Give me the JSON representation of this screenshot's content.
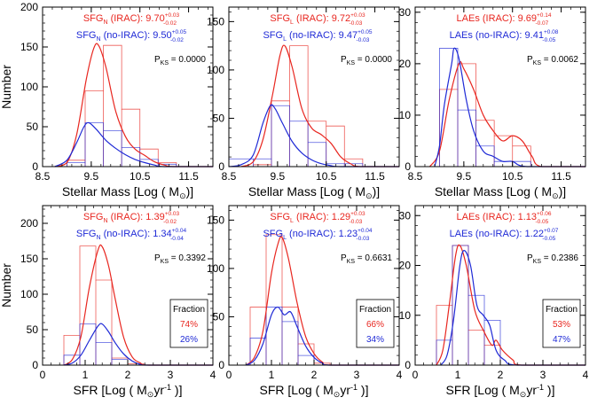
{
  "colors": {
    "irac": "#e8261f",
    "noirac": "#1f2ad6",
    "axis": "#000000"
  },
  "labels": {
    "y_number": "Number",
    "x_mass": "Stellar Mass [Log ( M",
    "x_mass_tail": ")]",
    "x_sfr": "SFR [Log ( M",
    "x_sfr_mid": "yr",
    "x_sfr_exp": "-1",
    "x_sfr_tail": " )]",
    "sun": "⊙",
    "fraction_title": "Fraction"
  },
  "chart_data": [
    {
      "type": "histogram+kde",
      "name": "SFG_N stellar mass",
      "xlim": [
        8.5,
        12.0
      ],
      "ylim": [
        0,
        200
      ],
      "xticks": [
        8.5,
        9.5,
        10.5,
        11.5
      ],
      "yticks": [
        0,
        50,
        100,
        150,
        200
      ],
      "legend": {
        "irac": {
          "name": "SFG",
          "sub": "N",
          "label": " (IRAC): 9.70",
          "sup": "+0.03",
          "sub2": "-0.02"
        },
        "noirac": {
          "name": "SFG",
          "sub": "N",
          "label": " (no-IRAC): 9.50",
          "sup": "+0.05",
          "sub2": "-0.02"
        }
      },
      "pks_label": "P",
      "pks_sub": "KS",
      "pks_value": " = 0.0000",
      "hist": {
        "edges": [
          9.0,
          9.375,
          9.75,
          10.125,
          10.5,
          10.875,
          11.25
        ],
        "irac": [
          8,
          95,
          152,
          72,
          22,
          5
        ],
        "noirac": [
          5,
          55,
          45,
          24,
          9,
          3
        ]
      },
      "kde": {
        "irac": [
          [
            8.75,
            0
          ],
          [
            9.0,
            5
          ],
          [
            9.2,
            40
          ],
          [
            9.4,
            110
          ],
          [
            9.55,
            148
          ],
          [
            9.65,
            152
          ],
          [
            9.8,
            125
          ],
          [
            10.0,
            70
          ],
          [
            10.2,
            38
          ],
          [
            10.4,
            22
          ],
          [
            10.6,
            14
          ],
          [
            10.8,
            6
          ],
          [
            11.0,
            2
          ],
          [
            11.2,
            0
          ],
          [
            12.0,
            0
          ]
        ],
        "noirac": [
          [
            8.75,
            0
          ],
          [
            9.0,
            8
          ],
          [
            9.2,
            30
          ],
          [
            9.35,
            50
          ],
          [
            9.45,
            55
          ],
          [
            9.6,
            47
          ],
          [
            9.8,
            33
          ],
          [
            10.0,
            23
          ],
          [
            10.2,
            15
          ],
          [
            10.4,
            9
          ],
          [
            10.6,
            5
          ],
          [
            10.8,
            2
          ],
          [
            11.0,
            0
          ],
          [
            12.0,
            0
          ]
        ]
      }
    },
    {
      "type": "histogram+kde",
      "name": "SFG_L stellar mass",
      "xlim": [
        8.5,
        12.0
      ],
      "ylim": [
        0,
        165
      ],
      "xticks": [
        8.5,
        9.5,
        10.5,
        11.5
      ],
      "yticks": [
        0,
        50,
        100,
        150
      ],
      "legend": {
        "irac": {
          "name": "SFG",
          "sub": "L",
          "label": " (IRAC): 9.72",
          "sup": "+0.03",
          "sub2": "-0.03"
        },
        "noirac": {
          "name": "SFG",
          "sub": "L",
          "label": " (no-IRAC): 9.47",
          "sup": "+0.05",
          "sub2": "-0.03"
        }
      },
      "pks_label": "P",
      "pks_sub": "KS",
      "pks_value": " = 0.0000",
      "hist": {
        "edges": [
          8.5,
          9.0,
          9.375,
          9.75,
          10.125,
          10.5,
          10.875,
          11.25
        ],
        "irac": [
          0,
          2,
          68,
          125,
          47,
          42,
          8
        ],
        "noirac": [
          8,
          8,
          63,
          47,
          25,
          3,
          3
        ]
      },
      "kde": {
        "irac": [
          [
            8.75,
            0
          ],
          [
            9.0,
            5
          ],
          [
            9.2,
            28
          ],
          [
            9.4,
            75
          ],
          [
            9.55,
            115
          ],
          [
            9.65,
            125
          ],
          [
            9.8,
            103
          ],
          [
            10.0,
            60
          ],
          [
            10.2,
            40
          ],
          [
            10.4,
            33
          ],
          [
            10.6,
            24
          ],
          [
            10.8,
            10
          ],
          [
            11.0,
            3
          ],
          [
            11.2,
            0
          ],
          [
            12.0,
            0
          ]
        ],
        "noirac": [
          [
            8.5,
            0
          ],
          [
            8.75,
            2
          ],
          [
            9.0,
            12
          ],
          [
            9.2,
            45
          ],
          [
            9.35,
            63
          ],
          [
            9.45,
            60
          ],
          [
            9.6,
            45
          ],
          [
            9.8,
            26
          ],
          [
            10.0,
            14
          ],
          [
            10.2,
            7
          ],
          [
            10.4,
            3
          ],
          [
            10.6,
            1
          ],
          [
            10.8,
            0
          ],
          [
            12.0,
            0
          ]
        ]
      }
    },
    {
      "type": "histogram+kde",
      "name": "LAEs stellar mass",
      "xlim": [
        8.5,
        12.0
      ],
      "ylim": [
        0,
        31
      ],
      "xticks": [
        8.5,
        9.5,
        10.5,
        11.5
      ],
      "yticks": [
        0,
        10,
        20,
        30
      ],
      "legend": {
        "irac": {
          "name": "LAEs",
          "sub": "",
          "label": " (IRAC): 9.69",
          "sup": "+0.14",
          "sub2": "-0.07"
        },
        "noirac": {
          "name": "LAEs",
          "sub": "",
          "label": " (no-IRAC): 9.41",
          "sup": "+0.08",
          "sub2": "-0.05"
        }
      },
      "pks_label": "P",
      "pks_sub": "KS",
      "pks_value": " = 0.0062",
      "hist": {
        "edges": [
          9.0,
          9.375,
          9.75,
          10.125,
          10.5,
          10.875,
          11.25
        ],
        "irac": [
          15,
          20,
          9,
          6,
          4,
          0
        ],
        "noirac": [
          23,
          11,
          4,
          1,
          1,
          0
        ]
      },
      "kde": {
        "irac": [
          [
            8.8,
            0
          ],
          [
            9.0,
            3
          ],
          [
            9.2,
            13
          ],
          [
            9.4,
            20
          ],
          [
            9.5,
            19
          ],
          [
            9.7,
            15
          ],
          [
            9.9,
            10
          ],
          [
            10.1,
            7
          ],
          [
            10.3,
            5
          ],
          [
            10.5,
            6
          ],
          [
            10.7,
            5
          ],
          [
            10.9,
            2
          ],
          [
            11.1,
            0
          ],
          [
            12.0,
            0
          ]
        ],
        "noirac": [
          [
            8.9,
            0
          ],
          [
            9.0,
            4
          ],
          [
            9.1,
            12
          ],
          [
            9.25,
            20
          ],
          [
            9.3,
            23
          ],
          [
            9.4,
            21
          ],
          [
            9.55,
            13
          ],
          [
            9.7,
            7
          ],
          [
            9.9,
            3
          ],
          [
            10.1,
            2
          ],
          [
            10.3,
            1
          ],
          [
            10.5,
            1
          ],
          [
            10.8,
            0
          ],
          [
            12.0,
            0
          ]
        ]
      }
    },
    {
      "type": "histogram+kde",
      "name": "SFG_N SFR",
      "xlim": [
        0,
        4
      ],
      "ylim": [
        0,
        225
      ],
      "xticks": [
        0,
        1,
        2,
        3,
        4
      ],
      "yticks": [
        0,
        50,
        100,
        150,
        200
      ],
      "legend": {
        "irac": {
          "name": "SFG",
          "sub": "N",
          "label": " (IRAC): 1.39",
          "sup": "+0.03",
          "sub2": "-0.02"
        },
        "noirac": {
          "name": "SFG",
          "sub": "N",
          "label": " (no-IRAC): 1.34",
          "sup": "+0.04",
          "sub2": "-0.04"
        }
      },
      "pks_label": "P",
      "pks_sub": "KS",
      "pks_value": " = 0.3392",
      "fraction": {
        "irac": "74%",
        "noirac": "26%"
      },
      "hist": {
        "edges": [
          0.5,
          0.875,
          1.25,
          1.625,
          2.0,
          2.375
        ],
        "irac": [
          42,
          168,
          120,
          10,
          2
        ],
        "noirac": [
          14,
          58,
          32,
          8,
          0
        ]
      },
      "kde": {
        "irac": [
          [
            0.5,
            0
          ],
          [
            0.7,
            8
          ],
          [
            0.9,
            40
          ],
          [
            1.1,
            110
          ],
          [
            1.3,
            162
          ],
          [
            1.4,
            167
          ],
          [
            1.55,
            140
          ],
          [
            1.7,
            95
          ],
          [
            1.9,
            40
          ],
          [
            2.1,
            12
          ],
          [
            2.3,
            3
          ],
          [
            2.5,
            0
          ],
          [
            4.0,
            0
          ]
        ],
        "noirac": [
          [
            0.5,
            0
          ],
          [
            0.7,
            3
          ],
          [
            0.9,
            14
          ],
          [
            1.1,
            35
          ],
          [
            1.3,
            55
          ],
          [
            1.4,
            58
          ],
          [
            1.55,
            47
          ],
          [
            1.7,
            32
          ],
          [
            1.9,
            16
          ],
          [
            2.1,
            6
          ],
          [
            2.3,
            1
          ],
          [
            2.5,
            0
          ],
          [
            4.0,
            0
          ]
        ]
      }
    },
    {
      "type": "histogram+kde",
      "name": "SFG_L SFR",
      "xlim": [
        0,
        4
      ],
      "ylim": [
        0,
        165
      ],
      "xticks": [
        0,
        1,
        2,
        3,
        4
      ],
      "yticks": [
        0,
        50,
        100,
        150
      ],
      "legend": {
        "irac": {
          "name": "SFG",
          "sub": "L",
          "label": " (IRAC): 1.29",
          "sup": "+0.03",
          "sub2": "-0.03"
        },
        "noirac": {
          "name": "SFG",
          "sub": "L",
          "label": " (no-IRAC): 1.23",
          "sup": "+0.04",
          "sub2": "-0.03"
        }
      },
      "pks_label": "P",
      "pks_sub": "KS",
      "pks_value": " = 0.6631",
      "fraction": {
        "irac": "66%",
        "noirac": "34%"
      },
      "hist": {
        "edges": [
          0.5,
          0.875,
          1.25,
          1.625,
          2.0,
          2.375
        ],
        "irac": [
          60,
          135,
          60,
          22,
          2
        ],
        "noirac": [
          28,
          60,
          45,
          10,
          0
        ]
      },
      "kde": {
        "irac": [
          [
            0.4,
            0
          ],
          [
            0.6,
            8
          ],
          [
            0.8,
            35
          ],
          [
            1.0,
            95
          ],
          [
            1.15,
            125
          ],
          [
            1.25,
            132
          ],
          [
            1.4,
            110
          ],
          [
            1.6,
            65
          ],
          [
            1.8,
            30
          ],
          [
            2.0,
            12
          ],
          [
            2.2,
            3
          ],
          [
            2.4,
            0
          ],
          [
            4.0,
            0
          ]
        ],
        "noirac": [
          [
            0.4,
            0
          ],
          [
            0.6,
            5
          ],
          [
            0.8,
            22
          ],
          [
            1.0,
            52
          ],
          [
            1.15,
            60
          ],
          [
            1.3,
            52
          ],
          [
            1.45,
            55
          ],
          [
            1.6,
            40
          ],
          [
            1.8,
            20
          ],
          [
            2.0,
            8
          ],
          [
            2.2,
            2
          ],
          [
            2.4,
            0
          ],
          [
            4.0,
            0
          ]
        ]
      }
    },
    {
      "type": "histogram+kde",
      "name": "LAEs SFR",
      "xlim": [
        0,
        4
      ],
      "ylim": [
        0,
        32
      ],
      "xticks": [
        0,
        1,
        2,
        3,
        4
      ],
      "yticks": [
        0,
        10,
        20,
        30
      ],
      "legend": {
        "irac": {
          "name": "LAEs",
          "sub": "",
          "label": " (IRAC): 1.13",
          "sup": "+0.06",
          "sub2": "-0.05"
        },
        "noirac": {
          "name": "LAEs",
          "sub": "",
          "label": " (no-IRAC): 1.22",
          "sup": "+0.07",
          "sub2": "-0.05"
        }
      },
      "pks_label": "P",
      "pks_sub": "KS",
      "pks_value": " = 0.2386",
      "fraction": {
        "irac": "53%",
        "noirac": "47%"
      },
      "hist": {
        "edges": [
          0.5,
          0.875,
          1.25,
          1.625,
          2.0,
          2.375
        ],
        "irac": [
          12,
          24,
          7,
          4,
          0
        ],
        "noirac": [
          5,
          24,
          14,
          9,
          0
        ]
      },
      "kde": {
        "irac": [
          [
            0.5,
            0
          ],
          [
            0.65,
            3
          ],
          [
            0.8,
            12
          ],
          [
            0.95,
            22
          ],
          [
            1.05,
            24
          ],
          [
            1.2,
            20
          ],
          [
            1.4,
            11
          ],
          [
            1.6,
            7
          ],
          [
            1.8,
            4
          ],
          [
            1.9,
            5
          ],
          [
            2.05,
            3
          ],
          [
            2.3,
            1
          ],
          [
            2.5,
            0
          ],
          [
            4.0,
            0
          ]
        ],
        "noirac": [
          [
            0.6,
            0
          ],
          [
            0.75,
            2
          ],
          [
            0.9,
            9
          ],
          [
            1.05,
            20
          ],
          [
            1.15,
            23
          ],
          [
            1.3,
            20
          ],
          [
            1.45,
            12
          ],
          [
            1.6,
            10
          ],
          [
            1.75,
            8
          ],
          [
            1.9,
            3
          ],
          [
            2.1,
            1
          ],
          [
            2.4,
            0
          ],
          [
            4.0,
            0
          ]
        ]
      }
    }
  ]
}
